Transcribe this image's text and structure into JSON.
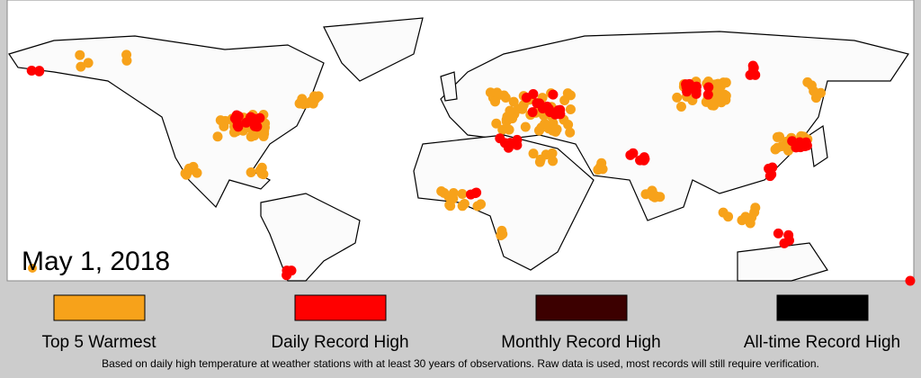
{
  "date": "May 1, 2018",
  "legend": [
    {
      "label": "Top 5 Warmest",
      "color": "#f7a21a"
    },
    {
      "label": "Daily Record High",
      "color": "#ff0000"
    },
    {
      "label": "Monthly Record High",
      "color": "#3c0000"
    },
    {
      "label": "All-time Record High",
      "color": "#000000"
    }
  ],
  "footnote": "Based on daily high temperature at weather stations with at least 30 years of observations.  Raw data is used, most records will still require verification."
}
